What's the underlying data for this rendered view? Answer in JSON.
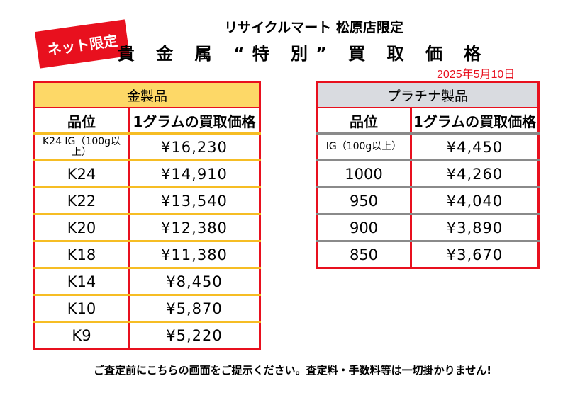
{
  "badge": "ネット限定",
  "store_name": "リサイクルマート 松原店限定",
  "title": "貴 金 属 “特 別” 買 取 価 格",
  "date": "2025年5月10日",
  "gold": {
    "category": "金製品",
    "col_item": "品位",
    "col_price": "1グラムの買取価格",
    "rows": [
      {
        "item": "K24 IG（100g以上）",
        "price": "¥16,230"
      },
      {
        "item": "K24",
        "price": "¥14,910"
      },
      {
        "item": "K22",
        "price": "¥13,540"
      },
      {
        "item": "K20",
        "price": "¥12,380"
      },
      {
        "item": "K18",
        "price": "¥11,380"
      },
      {
        "item": "K14",
        "price": "¥8,450"
      },
      {
        "item": "K10",
        "price": "¥5,870"
      },
      {
        "item": "K9",
        "price": "¥5,220"
      }
    ]
  },
  "platinum": {
    "category": "プラチナ製品",
    "col_item": "品位",
    "col_price": "1グラムの買取価格",
    "rows": [
      {
        "item": "IG（100g以上）",
        "price": "¥4,450"
      },
      {
        "item": "1000",
        "price": "¥4,260"
      },
      {
        "item": "950",
        "price": "¥4,040"
      },
      {
        "item": "900",
        "price": "¥3,890"
      },
      {
        "item": "850",
        "price": "¥3,670"
      }
    ]
  },
  "notice": "ご査定前にこちらの画面をご提示ください。査定料・手数料等は一切掛かりません!",
  "colors": {
    "red": "#e8101e",
    "gold_header": "#fdd867",
    "platinum_header": "#d9dbe0"
  }
}
